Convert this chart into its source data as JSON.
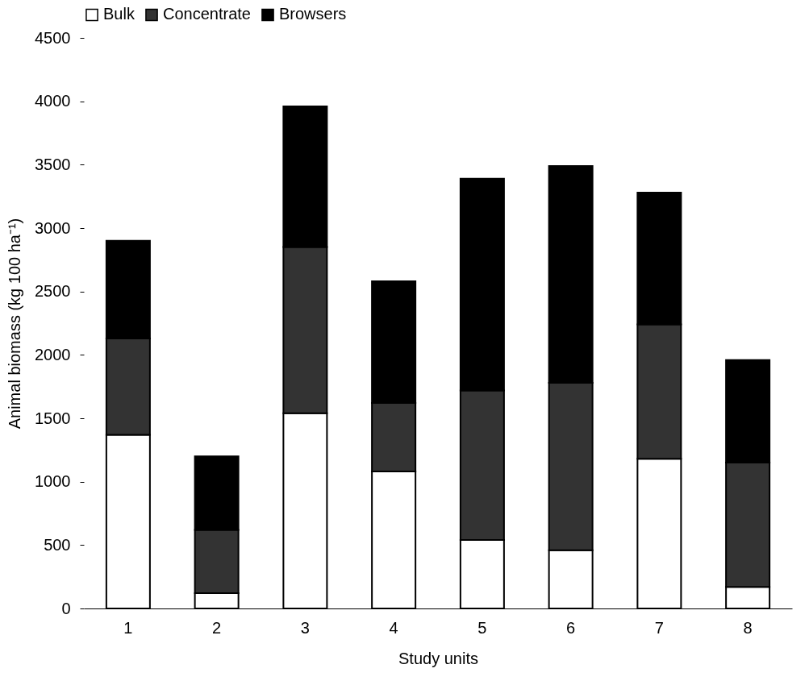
{
  "chart_data": {
    "type": "bar",
    "stacked": true,
    "xlabel": "Study units",
    "ylabel": "Animal biomass (kg 100 ha⁻¹)",
    "categories": [
      "1",
      "2",
      "3",
      "4",
      "5",
      "6",
      "7",
      "8"
    ],
    "series": [
      {
        "name": "Bulk",
        "color": "#ffffff",
        "values": [
          1370,
          120,
          1540,
          1080,
          540,
          460,
          1180,
          170
        ]
      },
      {
        "name": "Concentrate",
        "color": "#333333",
        "values": [
          760,
          500,
          1310,
          540,
          1180,
          1320,
          1060,
          980
        ]
      },
      {
        "name": "Browsers",
        "color": "#000000",
        "values": [
          770,
          580,
          1110,
          960,
          1670,
          1710,
          1040,
          810
        ]
      }
    ],
    "ylim": [
      0,
      4500
    ],
    "yticks": [
      0,
      500,
      1000,
      1500,
      2000,
      2500,
      3000,
      3500,
      4000,
      4500
    ],
    "grid": false,
    "legend": "top"
  }
}
